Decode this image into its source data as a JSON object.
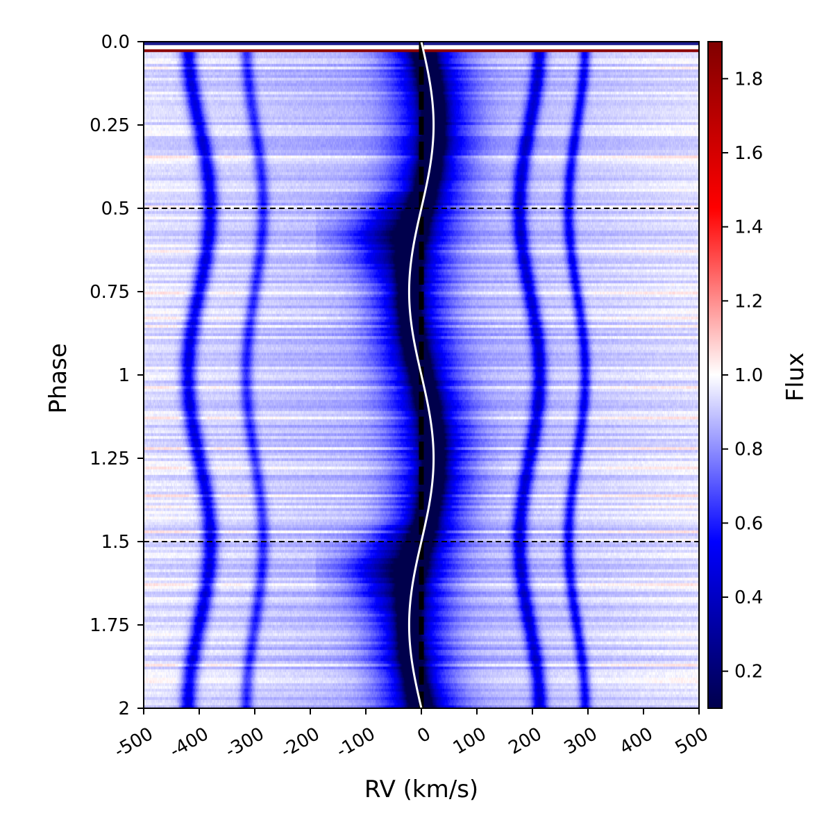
{
  "chart_data": {
    "type": "heatmap",
    "xlabel": "RV (km/s)",
    "ylabel": "Phase",
    "colorbar_label": "Flux",
    "xlim": [
      -500,
      500
    ],
    "ylim": [
      0,
      2
    ],
    "y_inverted": true,
    "x_ticks": [
      -500,
      -400,
      -300,
      -200,
      -100,
      0,
      100,
      200,
      300,
      400,
      500
    ],
    "x_tick_labels": [
      "-500",
      "-400",
      "-300",
      "-200",
      "-100",
      "0",
      "100",
      "200",
      "300",
      "400",
      "500"
    ],
    "y_ticks": [
      0,
      0.25,
      0.5,
      0.75,
      1,
      1.25,
      1.5,
      1.75,
      2
    ],
    "y_tick_labels": [
      "0.0",
      "0.25",
      "0.5",
      "0.75",
      "1",
      "1.25",
      "1.5",
      "1.75",
      "2"
    ],
    "colorbar_range": [
      0.1,
      1.9
    ],
    "colorbar_ticks": [
      0.2,
      0.4,
      0.6,
      0.8,
      1.0,
      1.2,
      1.4,
      1.6,
      1.8
    ],
    "colorbar_tick_labels": [
      "0.2",
      "0.4",
      "0.6",
      "0.8",
      "1.0",
      "1.2",
      "1.4",
      "1.6",
      "1.8"
    ],
    "colormap": [
      "#00004c",
      "#0000ff",
      "#ffffff",
      "#ff0000",
      "#800000"
    ],
    "horizontal_dashed_lines": [
      0.5,
      1.5
    ],
    "vertical_dashed_line": 0,
    "rv_curve": {
      "color": "#ffffff",
      "amplitude_kms": 22,
      "description_phase_shift": 0
    },
    "absorption_features": [
      {
        "center_rv": -400,
        "amplitude": 20,
        "phase_shift": -0.25,
        "depth": 0.45,
        "width": 14
      },
      {
        "center_rv": -300,
        "amplitude": 15,
        "phase_shift": -0.25,
        "depth": 0.3,
        "width": 11
      },
      {
        "center_rv": 0,
        "amplitude": 22,
        "phase_shift": 0,
        "depth": 0.88,
        "width": 22
      },
      {
        "center_rv": 195,
        "amplitude": 18,
        "phase_shift": 0.25,
        "depth": 0.45,
        "width": 13
      },
      {
        "center_rv": 280,
        "amplitude": 15,
        "phase_shift": 0.25,
        "depth": 0.38,
        "width": 10
      }
    ]
  }
}
